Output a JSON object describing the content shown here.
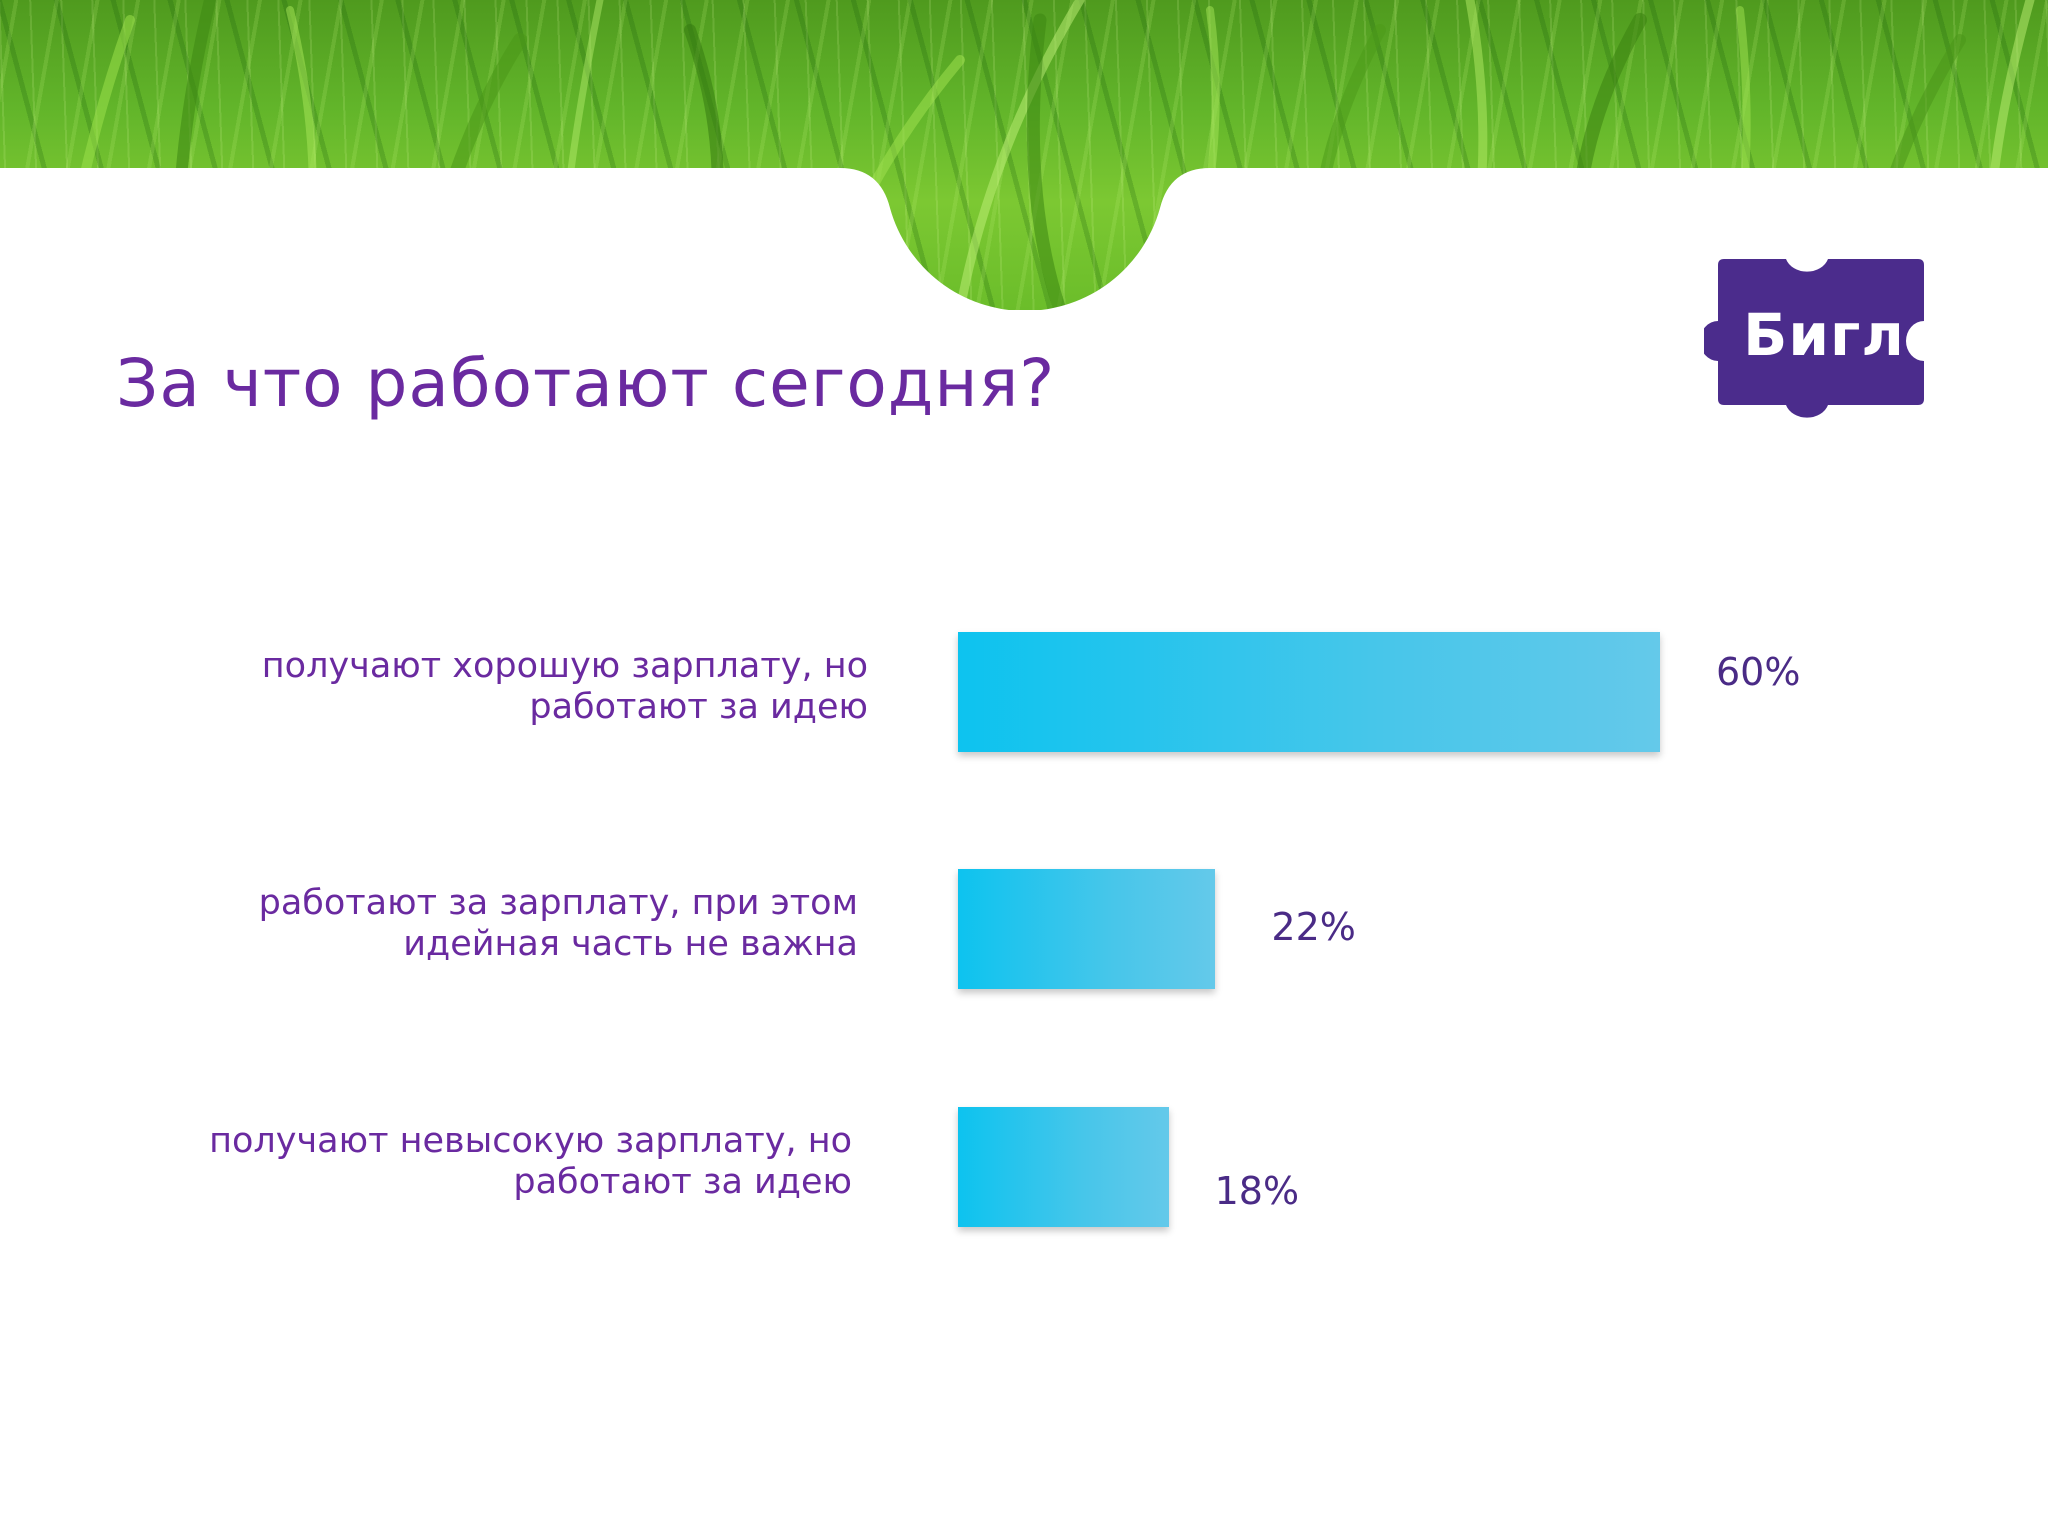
{
  "slide": {
    "title": "За что работают сегодня?"
  },
  "logo": {
    "text": "Бигл",
    "color": "#4b2c8c"
  },
  "colors": {
    "title": "#6a2aa0",
    "bar_start": "#0dc3ef",
    "bar_end": "#64c9ea",
    "value_text": "#4a2b86"
  },
  "chart_data": {
    "type": "bar",
    "orientation": "horizontal",
    "title": "",
    "xlabel": "",
    "ylabel": "",
    "xlim": [
      0,
      100
    ],
    "grid": false,
    "categories": [
      "получают хорошую зарплату, но работают за идею",
      "работают за зарплату, при этом идейная часть не важна",
      "получают невысокую зарплату, но работают за идею"
    ],
    "category_lines": [
      [
        "получают хорошую зарплату, но",
        "работают за идею"
      ],
      [
        "работают за зарплату, при этом",
        "идейная часть не важна"
      ],
      [
        "получают невысокую зарплату, но",
        "работают за идею"
      ]
    ],
    "values": [
      60,
      22,
      18
    ],
    "value_labels": [
      "60%",
      "22%",
      "18%"
    ]
  }
}
